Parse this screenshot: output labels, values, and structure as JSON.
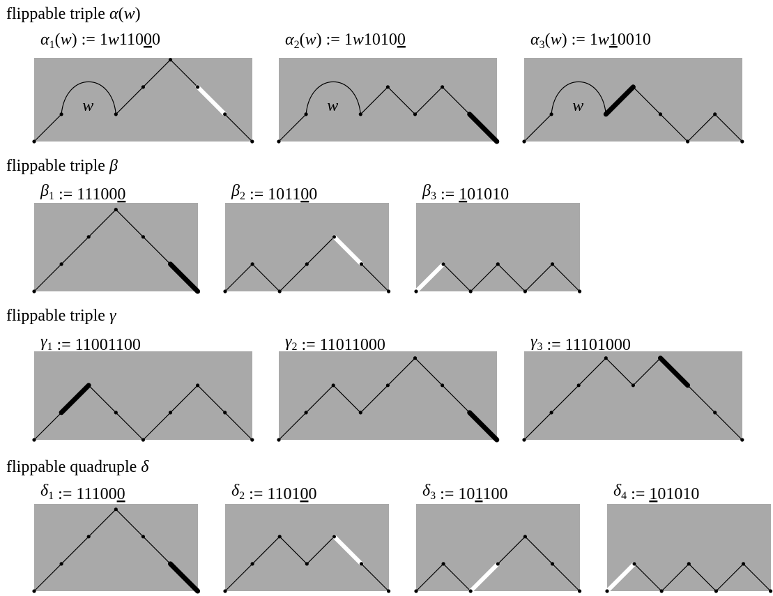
{
  "groups": [
    {
      "id": "alpha",
      "heading": {
        "prefix": "flippable triple ",
        "symbol": "α",
        "suffix": "(w)"
      },
      "panels": [
        {
          "id": "alpha1",
          "label": {
            "symbol": "α",
            "sub": "1",
            "arg": "(w)",
            "assign": " := ",
            "segments": [
              {
                "t": "1"
              },
              {
                "t": "w",
                "i": true
              },
              {
                "t": "110"
              },
              {
                "t": "0",
                "u": true
              },
              {
                "t": "0"
              }
            ]
          },
          "bump_label": "w",
          "path": [
            {
              "t": "1"
            },
            {
              "t": "w",
              "hump": true
            },
            {
              "t": "1"
            },
            {
              "t": "1"
            },
            {
              "t": "0"
            },
            {
              "t": "0",
              "hl": "white"
            },
            {
              "t": "0"
            }
          ]
        },
        {
          "id": "alpha2",
          "label": {
            "symbol": "α",
            "sub": "2",
            "arg": "(w)",
            "assign": " := ",
            "segments": [
              {
                "t": "1"
              },
              {
                "t": "w",
                "i": true
              },
              {
                "t": "1010"
              },
              {
                "t": "0",
                "u": true
              }
            ]
          },
          "bump_label": "w",
          "path": [
            {
              "t": "1"
            },
            {
              "t": "w",
              "hump": true
            },
            {
              "t": "1"
            },
            {
              "t": "0"
            },
            {
              "t": "1"
            },
            {
              "t": "0"
            },
            {
              "t": "0",
              "hl": "black"
            }
          ]
        },
        {
          "id": "alpha3",
          "label": {
            "symbol": "α",
            "sub": "3",
            "arg": "(w)",
            "assign": " := ",
            "segments": [
              {
                "t": "1"
              },
              {
                "t": "w",
                "i": true
              },
              {
                "t": "1",
                "u": true
              },
              {
                "t": "0010"
              }
            ]
          },
          "bump_label": "w",
          "path": [
            {
              "t": "1"
            },
            {
              "t": "w",
              "hump": true
            },
            {
              "t": "1",
              "hl": "black"
            },
            {
              "t": "0"
            },
            {
              "t": "0"
            },
            {
              "t": "1"
            },
            {
              "t": "0"
            }
          ]
        }
      ]
    },
    {
      "id": "beta",
      "heading": {
        "prefix": "flippable triple ",
        "symbol": "β",
        "suffix": ""
      },
      "panels": [
        {
          "id": "beta1",
          "label": {
            "symbol": "β",
            "sub": "1",
            "arg": "",
            "assign": " := ",
            "segments": [
              {
                "t": "11100"
              },
              {
                "t": "0",
                "u": true
              }
            ]
          },
          "path": [
            {
              "t": "1"
            },
            {
              "t": "1"
            },
            {
              "t": "1"
            },
            {
              "t": "0"
            },
            {
              "t": "0"
            },
            {
              "t": "0",
              "hl": "black"
            }
          ]
        },
        {
          "id": "beta2",
          "label": {
            "symbol": "β",
            "sub": "2",
            "arg": "",
            "assign": " := ",
            "segments": [
              {
                "t": "1011"
              },
              {
                "t": "0",
                "u": true
              },
              {
                "t": "0"
              }
            ]
          },
          "path": [
            {
              "t": "1"
            },
            {
              "t": "0"
            },
            {
              "t": "1"
            },
            {
              "t": "1"
            },
            {
              "t": "0",
              "hl": "white"
            },
            {
              "t": "0"
            }
          ]
        },
        {
          "id": "beta3",
          "label": {
            "symbol": "β",
            "sub": "3",
            "arg": "",
            "assign": " := ",
            "segments": [
              {
                "t": "1",
                "u": true
              },
              {
                "t": "01010"
              }
            ]
          },
          "path": [
            {
              "t": "1",
              "hl": "white"
            },
            {
              "t": "0"
            },
            {
              "t": "1"
            },
            {
              "t": "0"
            },
            {
              "t": "1"
            },
            {
              "t": "0"
            }
          ]
        }
      ]
    },
    {
      "id": "gamma",
      "heading": {
        "prefix": "flippable triple ",
        "symbol": "γ",
        "suffix": ""
      },
      "panels": [
        {
          "id": "gamma1",
          "label": {
            "symbol": "γ",
            "sub": "1",
            "arg": "",
            "assign": " := ",
            "segments": [
              {
                "t": "1"
              },
              {
                "t": "1",
                "u": true
              },
              {
                "t": "001100"
              }
            ]
          },
          "path": [
            {
              "t": "1"
            },
            {
              "t": "1",
              "hl": "black"
            },
            {
              "t": "0"
            },
            {
              "t": "0"
            },
            {
              "t": "1"
            },
            {
              "t": "1"
            },
            {
              "t": "0"
            },
            {
              "t": "0"
            }
          ]
        },
        {
          "id": "gamma2",
          "label": {
            "symbol": "γ",
            "sub": "2",
            "arg": "",
            "assign": " := ",
            "segments": [
              {
                "t": "1101100"
              },
              {
                "t": "0",
                "u": true
              }
            ]
          },
          "path": [
            {
              "t": "1"
            },
            {
              "t": "1"
            },
            {
              "t": "0"
            },
            {
              "t": "1"
            },
            {
              "t": "1"
            },
            {
              "t": "0"
            },
            {
              "t": "0"
            },
            {
              "t": "0",
              "hl": "black"
            }
          ]
        },
        {
          "id": "gamma3",
          "label": {
            "symbol": "γ",
            "sub": "3",
            "arg": "",
            "assign": " := ",
            "segments": [
              {
                "t": "11101"
              },
              {
                "t": "0",
                "u": true
              },
              {
                "t": "00"
              }
            ]
          },
          "path": [
            {
              "t": "1"
            },
            {
              "t": "1"
            },
            {
              "t": "1"
            },
            {
              "t": "0"
            },
            {
              "t": "1"
            },
            {
              "t": "0",
              "hl": "black"
            },
            {
              "t": "0"
            },
            {
              "t": "0"
            }
          ]
        }
      ]
    },
    {
      "id": "delta",
      "heading": {
        "prefix": "flippable quadruple ",
        "symbol": "δ",
        "suffix": ""
      },
      "panels": [
        {
          "id": "delta1",
          "label": {
            "symbol": "δ",
            "sub": "1",
            "arg": "",
            "assign": " := ",
            "segments": [
              {
                "t": "11100"
              },
              {
                "t": "0",
                "u": true
              }
            ]
          },
          "path": [
            {
              "t": "1"
            },
            {
              "t": "1"
            },
            {
              "t": "1"
            },
            {
              "t": "0"
            },
            {
              "t": "0"
            },
            {
              "t": "0",
              "hl": "black"
            }
          ]
        },
        {
          "id": "delta2",
          "label": {
            "symbol": "δ",
            "sub": "2",
            "arg": "",
            "assign": " := ",
            "segments": [
              {
                "t": "1101"
              },
              {
                "t": "0",
                "u": true
              },
              {
                "t": "0"
              }
            ]
          },
          "path": [
            {
              "t": "1"
            },
            {
              "t": "1"
            },
            {
              "t": "0"
            },
            {
              "t": "1"
            },
            {
              "t": "0",
              "hl": "white"
            },
            {
              "t": "0"
            }
          ]
        },
        {
          "id": "delta3",
          "label": {
            "symbol": "δ",
            "sub": "3",
            "arg": "",
            "assign": " := ",
            "segments": [
              {
                "t": "10"
              },
              {
                "t": "1",
                "u": true
              },
              {
                "t": "100"
              }
            ]
          },
          "path": [
            {
              "t": "1"
            },
            {
              "t": "0"
            },
            {
              "t": "1",
              "hl": "white"
            },
            {
              "t": "1"
            },
            {
              "t": "0"
            },
            {
              "t": "0"
            }
          ]
        },
        {
          "id": "delta4",
          "label": {
            "symbol": "δ",
            "sub": "4",
            "arg": "",
            "assign": " := ",
            "segments": [
              {
                "t": "1",
                "u": true
              },
              {
                "t": "01010"
              }
            ]
          },
          "path": [
            {
              "t": "1",
              "hl": "white"
            },
            {
              "t": "0"
            },
            {
              "t": "1"
            },
            {
              "t": "0"
            },
            {
              "t": "1"
            },
            {
              "t": "0"
            }
          ]
        }
      ]
    }
  ],
  "colors": {
    "panel": "#a9a9a9",
    "line": "#000000",
    "highlight_black": "#000000",
    "highlight_white": "#ffffff"
  }
}
